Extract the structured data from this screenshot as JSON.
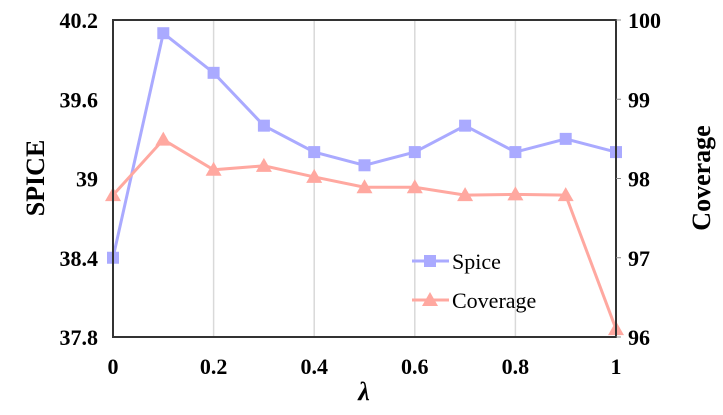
{
  "chart_data": {
    "type": "line",
    "xlabel": "λ",
    "ylabel_left": "SPICE",
    "ylabel_right": "Coverage",
    "x": [
      0,
      0.1,
      0.2,
      0.3,
      0.4,
      0.5,
      0.6,
      0.7,
      0.8,
      0.9,
      1
    ],
    "x_ticks": [
      "0",
      "0.2",
      "0.4",
      "0.6",
      "0.8",
      "1"
    ],
    "x_tick_values": [
      0,
      0.2,
      0.4,
      0.6,
      0.8,
      1
    ],
    "xlim": [
      0,
      1
    ],
    "y_left_ticks": [
      "37.8",
      "38.4",
      "39",
      "39.6",
      "40.2"
    ],
    "y_left_tick_values": [
      37.8,
      38.4,
      39,
      39.6,
      40.2
    ],
    "ylim_left": [
      37.8,
      40.2
    ],
    "y_right_ticks": [
      "96",
      "97",
      "98",
      "99",
      "100"
    ],
    "y_right_tick_values": [
      96,
      97,
      98,
      99,
      100
    ],
    "ylim_right": [
      96,
      100
    ],
    "grid": "vertical",
    "legend_position": "bottom-right",
    "series": [
      {
        "name": "Spice",
        "axis": "left",
        "marker": "square",
        "color": "#aaaaff",
        "values": [
          38.4,
          40.1,
          39.8,
          39.4,
          39.2,
          39.1,
          39.2,
          39.4,
          39.2,
          39.3,
          39.2
        ]
      },
      {
        "name": "Coverage",
        "axis": "right",
        "marker": "triangle",
        "color": "#ffa8a0",
        "values": [
          97.79,
          98.49,
          98.11,
          98.16,
          98.02,
          97.89,
          97.89,
          97.79,
          97.8,
          97.79,
          96.1
        ]
      }
    ]
  }
}
